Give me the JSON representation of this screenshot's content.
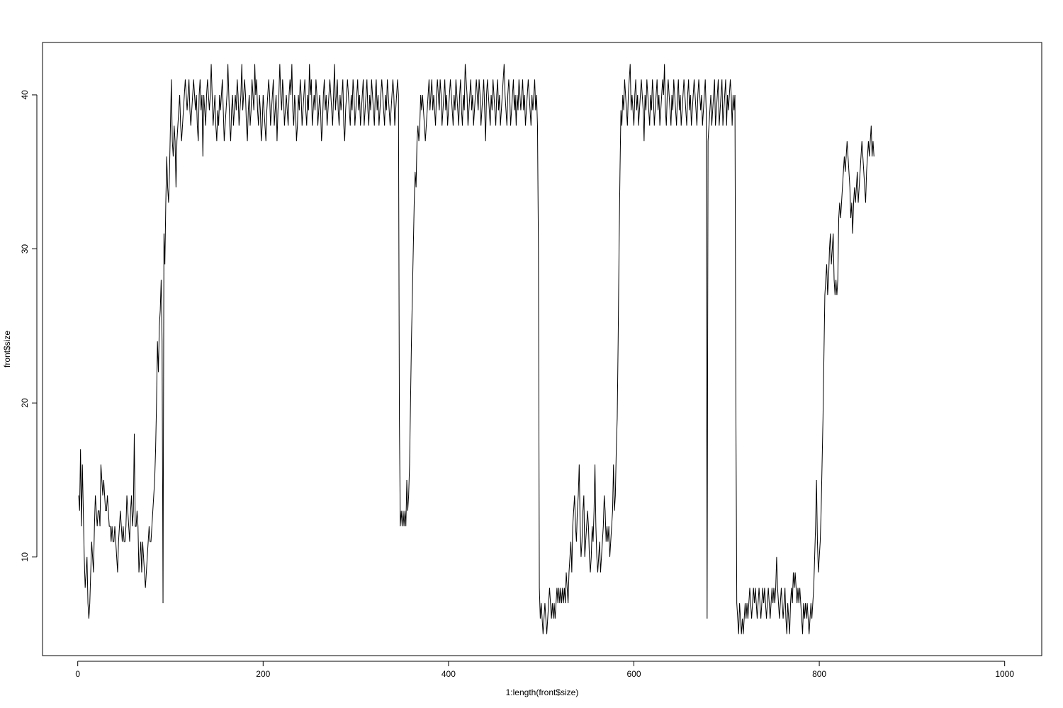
{
  "chart_data": {
    "type": "line",
    "title": "",
    "xlabel": "1:length(front$size)",
    "ylabel": "front$size",
    "xlim": [
      -38,
      1040
    ],
    "ylim": [
      3.6,
      43.4
    ],
    "x_ticks": [
      0,
      200,
      400,
      600,
      800,
      1000
    ],
    "y_ticks": [
      10,
      20,
      30,
      40
    ],
    "grid": false,
    "legend": "none",
    "line_color": "#000000",
    "series": [
      {
        "x_start": 1,
        "values": [
          14,
          13,
          17,
          12,
          16,
          13,
          10,
          8,
          9,
          10,
          7,
          6,
          7,
          9,
          11,
          10,
          9,
          12,
          14,
          13,
          12,
          13,
          13,
          12,
          16,
          15,
          14,
          15,
          14,
          13,
          13,
          14,
          13,
          12,
          12,
          11,
          12,
          11,
          11,
          12,
          11,
          10,
          9,
          11,
          12,
          13,
          12,
          11,
          12,
          11,
          11,
          12,
          14,
          13,
          12,
          11,
          13,
          14,
          12,
          13,
          18,
          12,
          12,
          13,
          12,
          9,
          10,
          11,
          9,
          11,
          10,
          9,
          8,
          9,
          10,
          11,
          12,
          11,
          11,
          12,
          13,
          14,
          15,
          17,
          20,
          24,
          22,
          25,
          26,
          28,
          24,
          7,
          31,
          29,
          33,
          36,
          34,
          33,
          35,
          38,
          41,
          37,
          36,
          38,
          37,
          34,
          37,
          38,
          39,
          40,
          38,
          37,
          38,
          39,
          40,
          41,
          40,
          39,
          40,
          41,
          39,
          38,
          39,
          40,
          41,
          40,
          39,
          40,
          38,
          37,
          40,
          41,
          39,
          40,
          36,
          40,
          39,
          38,
          40,
          41,
          40,
          39,
          40,
          42,
          40,
          38,
          39,
          40,
          38,
          37,
          39,
          38,
          40,
          39,
          40,
          41,
          39,
          37,
          38,
          39,
          40,
          42,
          40,
          38,
          37,
          39,
          40,
          38,
          39,
          40,
          39,
          41,
          40,
          38,
          39,
          40,
          42,
          39,
          40,
          41,
          40,
          38,
          37,
          39,
          40,
          38,
          39,
          41,
          40,
          39,
          42,
          40,
          41,
          39,
          38,
          40,
          39,
          37,
          38,
          40,
          39,
          38,
          37,
          39,
          40,
          41,
          40,
          38,
          39,
          40,
          41,
          38,
          39,
          40,
          37,
          39,
          40,
          42,
          40,
          39,
          41,
          40,
          38,
          39,
          40,
          39,
          38,
          40,
          41,
          40,
          42,
          39,
          38,
          40,
          39,
          37,
          38,
          40,
          39,
          41,
          40,
          38,
          39,
          40,
          41,
          39,
          38,
          40,
          39,
          42,
          40,
          41,
          38,
          39,
          40,
          39,
          41,
          40,
          38,
          39,
          40,
          39,
          37,
          38,
          40,
          41,
          39,
          40,
          38,
          39,
          40,
          41,
          40,
          39,
          38,
          40,
          42,
          39,
          40,
          41,
          39,
          38,
          40,
          39,
          40,
          41,
          38,
          37,
          39,
          40,
          41,
          40,
          39,
          38,
          40,
          39,
          41,
          40,
          38,
          39,
          40,
          41,
          39,
          40,
          38,
          39,
          40,
          41,
          38,
          39,
          40,
          41,
          39,
          38,
          40,
          39,
          41,
          40,
          39,
          38,
          40,
          41,
          39,
          40,
          38,
          39,
          40,
          41,
          40,
          39,
          38,
          40,
          39,
          41,
          40,
          39,
          38,
          39,
          40,
          41,
          40,
          38,
          39,
          40,
          41,
          40,
          19,
          12,
          13,
          12,
          13,
          12,
          13,
          12,
          15,
          13,
          14,
          16,
          20,
          24,
          27,
          30,
          33,
          35,
          34,
          37,
          38,
          37,
          38,
          40,
          39,
          40,
          39,
          38,
          37,
          38,
          39,
          40,
          41,
          39,
          40,
          41,
          39,
          40,
          39,
          38,
          40,
          41,
          40,
          39,
          41,
          40,
          38,
          39,
          40,
          41,
          39,
          40,
          38,
          39,
          40,
          41,
          40,
          39,
          38,
          40,
          39,
          41,
          40,
          39,
          38,
          40,
          41,
          39,
          38,
          40,
          39,
          42,
          41,
          40,
          38,
          39,
          40,
          41,
          39,
          40,
          38,
          39,
          40,
          41,
          40,
          39,
          41,
          40,
          38,
          39,
          40,
          41,
          39,
          37,
          40,
          41,
          40,
          39,
          38,
          40,
          39,
          41,
          40,
          39,
          38,
          40,
          41,
          39,
          40,
          38,
          39,
          40,
          41,
          42,
          40,
          39,
          38,
          40,
          41,
          40,
          38,
          39,
          40,
          41,
          39,
          40,
          38,
          40,
          39,
          41,
          40,
          39,
          40,
          41,
          39,
          40,
          38,
          39,
          40,
          41,
          40,
          39,
          38,
          40,
          39,
          40,
          41,
          39,
          40,
          38,
          30,
          8,
          6,
          7,
          6,
          5,
          6,
          7,
          6,
          5,
          6,
          7,
          8,
          7,
          6,
          7,
          6,
          7,
          6,
          7,
          8,
          7,
          8,
          7,
          8,
          7,
          8,
          7,
          8,
          7,
          9,
          8,
          7,
          9,
          10,
          11,
          9,
          12,
          13,
          14,
          12,
          11,
          13,
          14,
          16,
          12,
          10,
          11,
          13,
          14,
          10,
          11,
          12,
          13,
          12,
          10,
          9,
          10,
          12,
          11,
          13,
          16,
          12,
          10,
          9,
          10,
          11,
          9,
          10,
          11,
          12,
          14,
          13,
          11,
          12,
          11,
          12,
          10,
          11,
          12,
          13,
          16,
          13,
          14,
          17,
          19,
          24,
          30,
          35,
          39,
          38,
          40,
          39,
          41,
          40,
          39,
          38,
          40,
          41,
          42,
          39,
          40,
          39,
          38,
          40,
          41,
          39,
          40,
          38,
          39,
          40,
          41,
          40,
          39,
          37,
          40,
          39,
          41,
          40,
          39,
          38,
          40,
          39,
          41,
          40,
          38,
          39,
          40,
          41,
          39,
          40,
          38,
          39,
          40,
          41,
          40,
          42,
          39,
          38,
          40,
          41,
          40,
          39,
          38,
          40,
          39,
          41,
          40,
          39,
          38,
          40,
          41,
          39,
          40,
          38,
          39,
          40,
          41,
          40,
          39,
          38,
          40,
          41,
          39,
          40,
          38,
          39,
          40,
          41,
          40,
          39,
          38,
          40,
          41,
          40,
          39,
          40,
          38,
          39,
          40,
          41,
          39,
          6,
          37,
          38,
          39,
          40,
          38,
          39,
          40,
          41,
          38,
          39,
          40,
          41,
          38,
          39,
          40,
          41,
          38,
          39,
          40,
          41,
          38,
          40,
          39,
          40,
          41,
          40,
          38,
          40,
          39,
          40,
          20,
          7,
          6,
          5,
          7,
          6,
          5,
          6,
          5,
          6,
          7,
          6,
          7,
          6,
          7,
          8,
          7,
          6,
          7,
          8,
          7,
          8,
          7,
          6,
          7,
          8,
          7,
          6,
          7,
          8,
          7,
          8,
          7,
          6,
          7,
          8,
          7,
          6,
          7,
          8,
          7,
          8,
          7,
          8,
          10,
          8,
          7,
          6,
          7,
          8,
          7,
          6,
          7,
          8,
          6,
          5,
          7,
          6,
          5,
          7,
          8,
          7,
          9,
          8,
          9,
          8,
          7,
          8,
          7,
          8,
          7,
          6,
          5,
          7,
          6,
          7,
          6,
          7,
          6,
          5,
          6,
          7,
          6,
          7,
          8,
          10,
          12,
          15,
          11,
          9,
          10,
          11,
          13,
          16,
          19,
          23,
          27,
          28,
          29,
          27,
          28,
          30,
          31,
          29,
          30,
          31,
          28,
          27,
          28,
          27,
          28,
          32,
          33,
          32,
          33,
          34,
          35,
          36,
          35,
          36,
          37,
          36,
          35,
          34,
          32,
          33,
          31,
          33,
          34,
          33,
          34,
          35,
          33,
          34,
          35,
          36,
          37,
          36,
          35,
          34,
          33,
          35,
          36,
          37,
          36,
          37,
          38,
          36,
          37,
          36
        ]
      }
    ]
  }
}
